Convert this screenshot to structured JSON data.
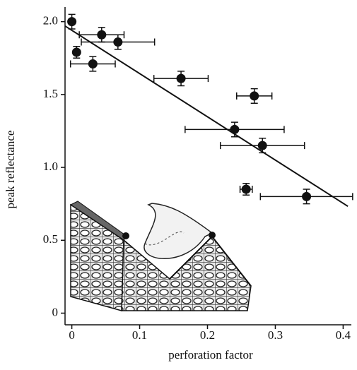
{
  "chart_data": {
    "type": "scatter",
    "xlabel": "perforation factor",
    "ylabel": "peak reflectance",
    "xlim": [
      -0.01,
      0.41
    ],
    "ylim": [
      -0.08,
      2.1
    ],
    "xticks": [
      0,
      0.1,
      0.2,
      0.3,
      0.4
    ],
    "yticks": [
      0,
      0.5,
      {
        "value": 1,
        "label": "1.0"
      },
      1.5,
      {
        "value": 2,
        "label": "2.0"
      }
    ],
    "series": [
      {
        "color": "#111111",
        "x": [
          0,
          0.007,
          0.031,
          0.044,
          0.068,
          0.161,
          0.269,
          0.24,
          0.281,
          0.257,
          0.346
        ],
        "values": [
          2.0,
          1.79,
          1.71,
          1.91,
          1.86,
          1.61,
          1.49,
          1.26,
          1.15,
          0.85,
          0.8
        ],
        "xerr": [
          null,
          null,
          0.033,
          0.033,
          0.054,
          0.04,
          0.026,
          0.073,
          0.062,
          0.009,
          0.068
        ],
        "yerr": [
          0.05,
          0.04,
          0.05,
          0.05,
          0.05,
          0.05,
          0.05,
          0.05,
          0.05,
          0.04,
          0.05
        ]
      },
      {
        "type": "line",
        "color": "#111111",
        "x": [
          -0.01,
          0.407
        ],
        "values": [
          1.97,
          0.733
        ]
      }
    ]
  }
}
